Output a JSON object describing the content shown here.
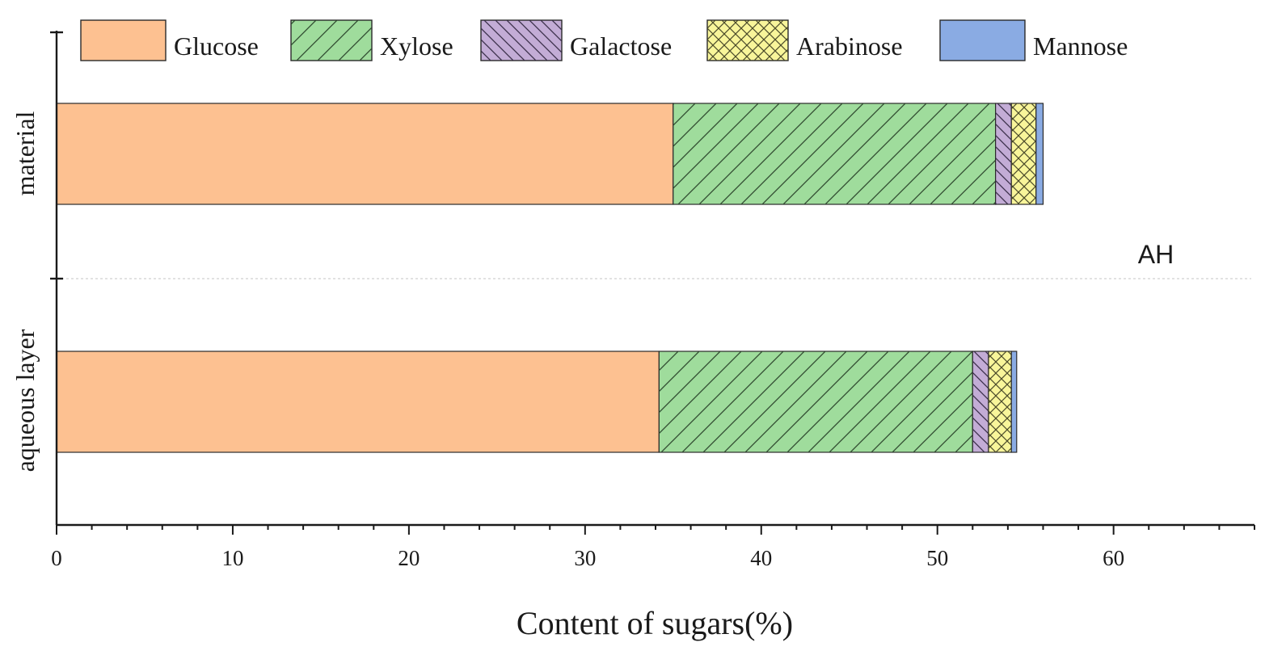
{
  "chart_data": {
    "type": "bar",
    "orientation": "horizontal",
    "stacked": true,
    "categories": [
      "material",
      "aqueous layer"
    ],
    "series": [
      {
        "name": "Glucose",
        "values": [
          35.0,
          34.2
        ],
        "color": "#fdc191",
        "pattern": "none"
      },
      {
        "name": "Xylose",
        "values": [
          18.3,
          17.8
        ],
        "color": "#9fdc9c",
        "pattern": "forward-hatch"
      },
      {
        "name": "Galactose",
        "values": [
          0.9,
          0.9
        ],
        "color": "#c3acd6",
        "pattern": "back-hatch"
      },
      {
        "name": "Arabinose",
        "values": [
          1.4,
          1.3
        ],
        "color": "#f8f59a",
        "pattern": "cross-hatch"
      },
      {
        "name": "Mannose",
        "values": [
          0.4,
          0.3
        ],
        "color": "#8aabe3",
        "pattern": "none"
      }
    ],
    "xlabel": "Content of sugars(%)",
    "ylabel": "",
    "xlim": [
      0,
      68
    ],
    "xticks": [
      0,
      10,
      20,
      30,
      40,
      50,
      60
    ],
    "annotation": "AH",
    "legend": "top",
    "grid": false
  }
}
